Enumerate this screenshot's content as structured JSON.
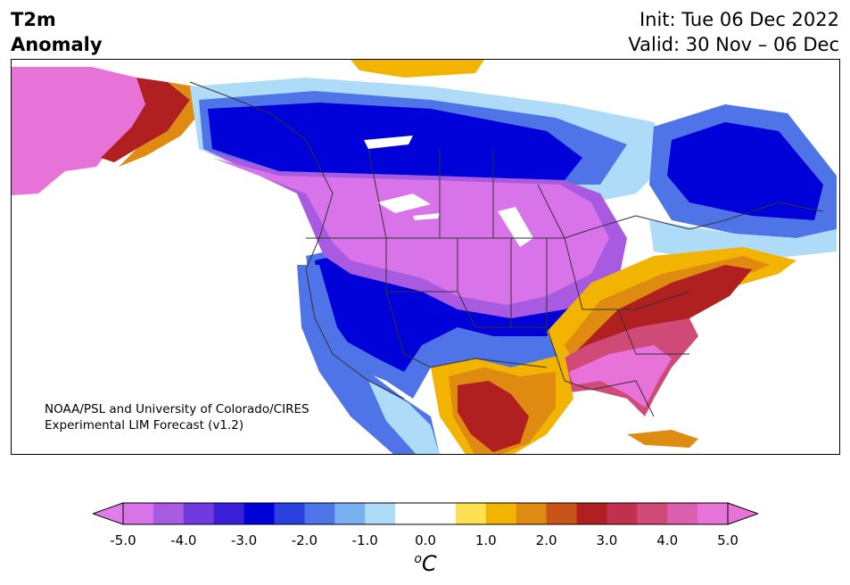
{
  "header": {
    "title_line1": "T2m",
    "title_line2": "Anomaly",
    "init_text": "Init: Tue 06 Dec 2022",
    "valid_text": "Valid: 30 Nov – 06 Dec"
  },
  "credit": {
    "line1": "NOAA/PSL and University of Colorado/CIRES",
    "line2": "Experimental LIM Forecast (v1.2)"
  },
  "colorbar": {
    "unit_base": "C",
    "unit_sup": "o",
    "tick_labels": [
      "-5.0",
      "-4.0",
      "-3.0",
      "-2.0",
      "-1.0",
      "0.0",
      "1.0",
      "2.0",
      "3.0",
      "4.0",
      "5.0"
    ],
    "under_color": "#e07de8",
    "over_color": "#e873d8",
    "colors": [
      "#d873ea",
      "#a85ae0",
      "#6f3ae0",
      "#3a1fd8",
      "#0000d8",
      "#2a3fe0",
      "#4e74e8",
      "#78b0f2",
      "#aedcf8",
      "#ffffff",
      "#ffffff",
      "#ffe050",
      "#f2b400",
      "#df8a10",
      "#c85418",
      "#b02020",
      "#c23050",
      "#d04a78",
      "#dc60b0",
      "#e873d8"
    ]
  },
  "map": {
    "colors": {
      "strong_warm": "#e873d8",
      "warm_red": "#b02020",
      "warm_orange": "#df8a10",
      "warm_yellow": "#f2b400",
      "strong_cold": "#d873ea",
      "cold_violet": "#a85ae0",
      "cold_blue": "#0000d8",
      "cold_mid": "#4e74e8",
      "cold_light": "#aedcf8",
      "neutral": "#ffffff",
      "border": "#333333"
    }
  }
}
